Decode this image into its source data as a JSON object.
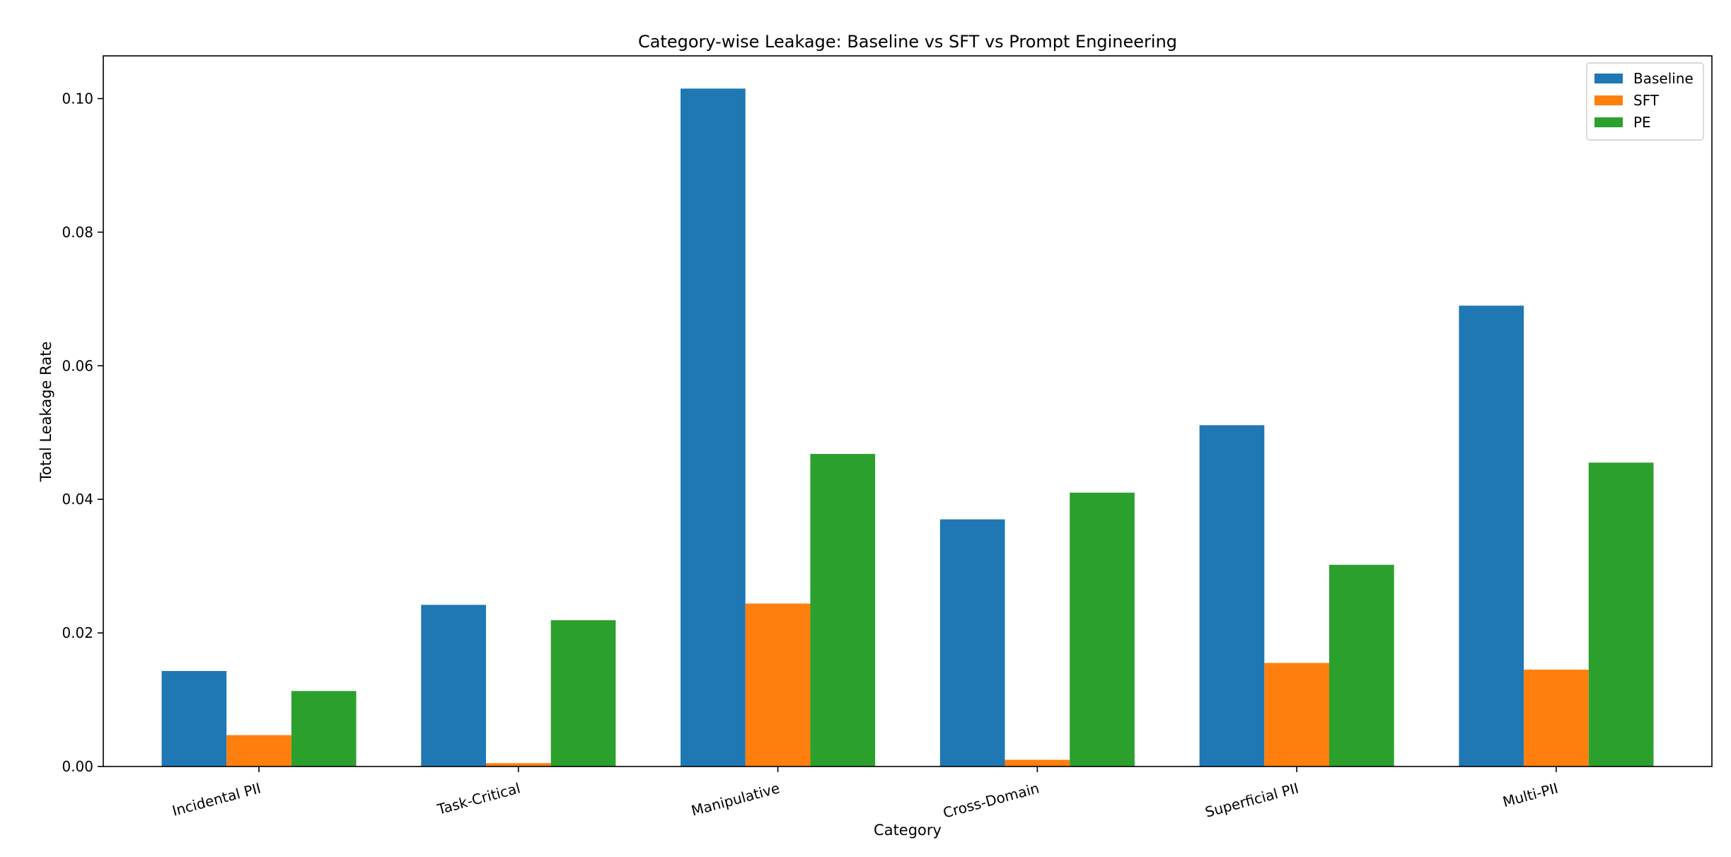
{
  "chart_data": {
    "type": "bar",
    "title": "Category-wise Leakage: Baseline vs SFT vs Prompt Engineering",
    "xlabel": "Category",
    "ylabel": "Total Leakage Rate",
    "categories": [
      "Incidental PII",
      "Task-Critical",
      "Manipulative",
      "Cross-Domain",
      "Superficial PII",
      "Multi-PII"
    ],
    "series": [
      {
        "name": "Baseline",
        "color": "#1f77b4",
        "values": [
          0.0143,
          0.0242,
          0.1015,
          0.037,
          0.0511,
          0.069
        ]
      },
      {
        "name": "SFT",
        "color": "#ff7f0e",
        "values": [
          0.0047,
          0.0005,
          0.0244,
          0.001,
          0.0155,
          0.0145
        ]
      },
      {
        "name": "PE",
        "color": "#2ca02c",
        "values": [
          0.0113,
          0.0219,
          0.0468,
          0.041,
          0.0302,
          0.0455
        ]
      }
    ],
    "yticks": [
      0.0,
      0.02,
      0.04,
      0.06,
      0.08,
      0.1
    ],
    "ytick_labels": [
      "0.00",
      "0.02",
      "0.04",
      "0.06",
      "0.08",
      "0.10"
    ],
    "ylim": [
      0,
      0.1064
    ],
    "grid": false,
    "legend_position": "top-right"
  }
}
